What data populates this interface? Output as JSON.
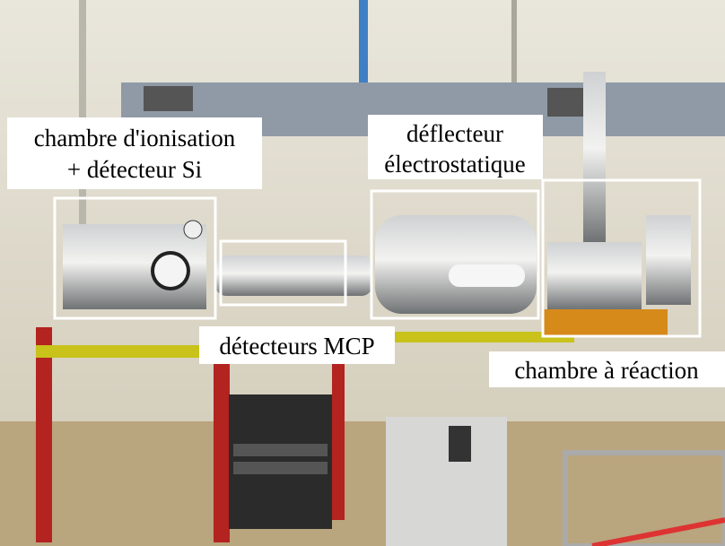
{
  "annotations": [
    {
      "lines": [
        "chambre d'ionisation",
        "+ détecteur Si"
      ]
    },
    {
      "lines": [
        "déflecteur",
        "électrostatique"
      ]
    },
    {
      "lines": [
        "détecteurs MCP"
      ]
    },
    {
      "lines": [
        "chambre à réaction"
      ]
    }
  ]
}
